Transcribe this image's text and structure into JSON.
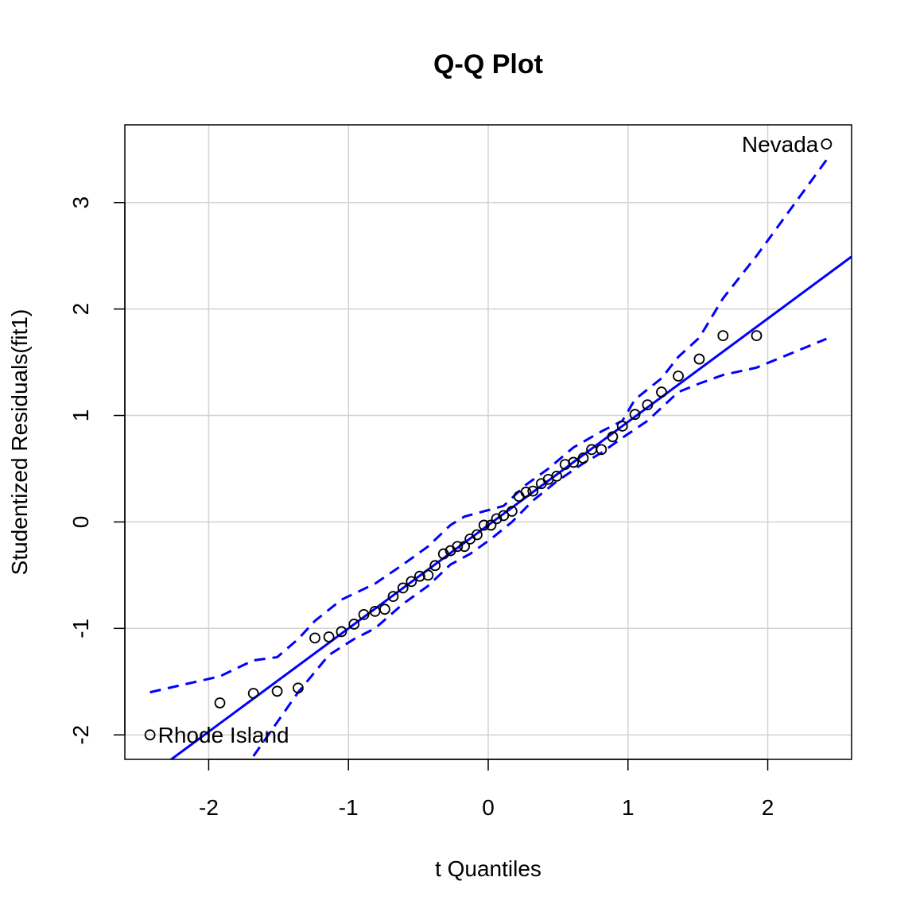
{
  "chart_data": {
    "type": "scatter",
    "title": "Q-Q Plot",
    "xlabel": "t Quantiles",
    "ylabel": "Studentized Residuals(fit1)",
    "xlim": [
      -2.6,
      2.6
    ],
    "ylim": [
      -2.23,
      3.73
    ],
    "x_ticks": [
      -2,
      -1,
      0,
      1,
      2
    ],
    "x_tick_labels": [
      "-2",
      "-1",
      "0",
      "1",
      "2"
    ],
    "y_ticks": [
      -2,
      -1,
      0,
      1,
      2,
      3
    ],
    "y_tick_labels": [
      "-2",
      "-1",
      "0",
      "1",
      "2",
      "3"
    ],
    "grid": true,
    "colors": {
      "points": "#000000",
      "line": "#0000ff",
      "grid": "#d3d3d3"
    },
    "points": [
      {
        "x": -2.42,
        "y": -2.0
      },
      {
        "x": -1.92,
        "y": -1.7
      },
      {
        "x": -1.68,
        "y": -1.61
      },
      {
        "x": -1.51,
        "y": -1.59
      },
      {
        "x": -1.36,
        "y": -1.56
      },
      {
        "x": -1.24,
        "y": -1.09
      },
      {
        "x": -1.14,
        "y": -1.08
      },
      {
        "x": -1.05,
        "y": -1.03
      },
      {
        "x": -0.96,
        "y": -0.96
      },
      {
        "x": -0.89,
        "y": -0.87
      },
      {
        "x": -0.81,
        "y": -0.84
      },
      {
        "x": -0.74,
        "y": -0.82
      },
      {
        "x": -0.68,
        "y": -0.7
      },
      {
        "x": -0.61,
        "y": -0.62
      },
      {
        "x": -0.55,
        "y": -0.56
      },
      {
        "x": -0.49,
        "y": -0.51
      },
      {
        "x": -0.43,
        "y": -0.5
      },
      {
        "x": -0.38,
        "y": -0.41
      },
      {
        "x": -0.32,
        "y": -0.3
      },
      {
        "x": -0.27,
        "y": -0.27
      },
      {
        "x": -0.22,
        "y": -0.23
      },
      {
        "x": -0.17,
        "y": -0.23
      },
      {
        "x": -0.13,
        "y": -0.16
      },
      {
        "x": -0.08,
        "y": -0.12
      },
      {
        "x": -0.03,
        "y": -0.03
      },
      {
        "x": 0.02,
        "y": -0.03
      },
      {
        "x": 0.06,
        "y": 0.03
      },
      {
        "x": 0.11,
        "y": 0.06
      },
      {
        "x": 0.17,
        "y": 0.1
      },
      {
        "x": 0.22,
        "y": 0.24
      },
      {
        "x": 0.27,
        "y": 0.28
      },
      {
        "x": 0.32,
        "y": 0.29
      },
      {
        "x": 0.38,
        "y": 0.36
      },
      {
        "x": 0.43,
        "y": 0.4
      },
      {
        "x": 0.49,
        "y": 0.43
      },
      {
        "x": 0.55,
        "y": 0.54
      },
      {
        "x": 0.61,
        "y": 0.56
      },
      {
        "x": 0.68,
        "y": 0.6
      },
      {
        "x": 0.74,
        "y": 0.68
      },
      {
        "x": 0.81,
        "y": 0.68
      },
      {
        "x": 0.89,
        "y": 0.8
      },
      {
        "x": 0.96,
        "y": 0.9
      },
      {
        "x": 1.05,
        "y": 1.01
      },
      {
        "x": 1.14,
        "y": 1.1
      },
      {
        "x": 1.24,
        "y": 1.22
      },
      {
        "x": 1.36,
        "y": 1.37
      },
      {
        "x": 1.51,
        "y": 1.53
      },
      {
        "x": 1.68,
        "y": 1.75
      },
      {
        "x": 1.92,
        "y": 1.75
      },
      {
        "x": 2.42,
        "y": 3.55
      }
    ],
    "reference_line": {
      "intercept": -0.03,
      "slope": 0.97
    },
    "upper_band": [
      {
        "x": -2.42,
        "y": -1.6
      },
      {
        "x": -1.92,
        "y": -1.45
      },
      {
        "x": -1.68,
        "y": -1.3
      },
      {
        "x": -1.51,
        "y": -1.27
      },
      {
        "x": -1.36,
        "y": -1.1
      },
      {
        "x": -1.24,
        "y": -0.93
      },
      {
        "x": -1.05,
        "y": -0.73
      },
      {
        "x": -0.81,
        "y": -0.58
      },
      {
        "x": -0.61,
        "y": -0.4
      },
      {
        "x": -0.43,
        "y": -0.23
      },
      {
        "x": -0.27,
        "y": -0.03
      },
      {
        "x": -0.17,
        "y": 0.05
      },
      {
        "x": -0.03,
        "y": 0.1
      },
      {
        "x": 0.11,
        "y": 0.15
      },
      {
        "x": 0.27,
        "y": 0.35
      },
      {
        "x": 0.43,
        "y": 0.5
      },
      {
        "x": 0.61,
        "y": 0.7
      },
      {
        "x": 0.81,
        "y": 0.85
      },
      {
        "x": 0.96,
        "y": 0.95
      },
      {
        "x": 1.05,
        "y": 1.15
      },
      {
        "x": 1.24,
        "y": 1.35
      },
      {
        "x": 1.36,
        "y": 1.55
      },
      {
        "x": 1.51,
        "y": 1.73
      },
      {
        "x": 1.68,
        "y": 2.1
      },
      {
        "x": 1.92,
        "y": 2.5
      },
      {
        "x": 2.42,
        "y": 3.4
      }
    ],
    "lower_band": [
      {
        "x": -1.68,
        "y": -2.2
      },
      {
        "x": -1.36,
        "y": -1.6
      },
      {
        "x": -1.14,
        "y": -1.25
      },
      {
        "x": -0.96,
        "y": -1.1
      },
      {
        "x": -0.81,
        "y": -1.0
      },
      {
        "x": -0.61,
        "y": -0.77
      },
      {
        "x": -0.43,
        "y": -0.6
      },
      {
        "x": -0.27,
        "y": -0.4
      },
      {
        "x": -0.13,
        "y": -0.3
      },
      {
        "x": 0.02,
        "y": -0.16
      },
      {
        "x": 0.17,
        "y": 0.0
      },
      {
        "x": 0.32,
        "y": 0.2
      },
      {
        "x": 0.49,
        "y": 0.38
      },
      {
        "x": 0.68,
        "y": 0.55
      },
      {
        "x": 0.81,
        "y": 0.65
      },
      {
        "x": 0.96,
        "y": 0.79
      },
      {
        "x": 1.14,
        "y": 0.95
      },
      {
        "x": 1.36,
        "y": 1.22
      },
      {
        "x": 1.51,
        "y": 1.3
      },
      {
        "x": 1.68,
        "y": 1.38
      },
      {
        "x": 1.92,
        "y": 1.45
      },
      {
        "x": 2.42,
        "y": 1.72
      }
    ],
    "annotations": [
      {
        "text": "Nevada",
        "x": 2.42,
        "y": 3.55,
        "side": "left"
      },
      {
        "text": "Rhode Island",
        "x": -2.42,
        "y": -2.0,
        "side": "right"
      }
    ]
  }
}
